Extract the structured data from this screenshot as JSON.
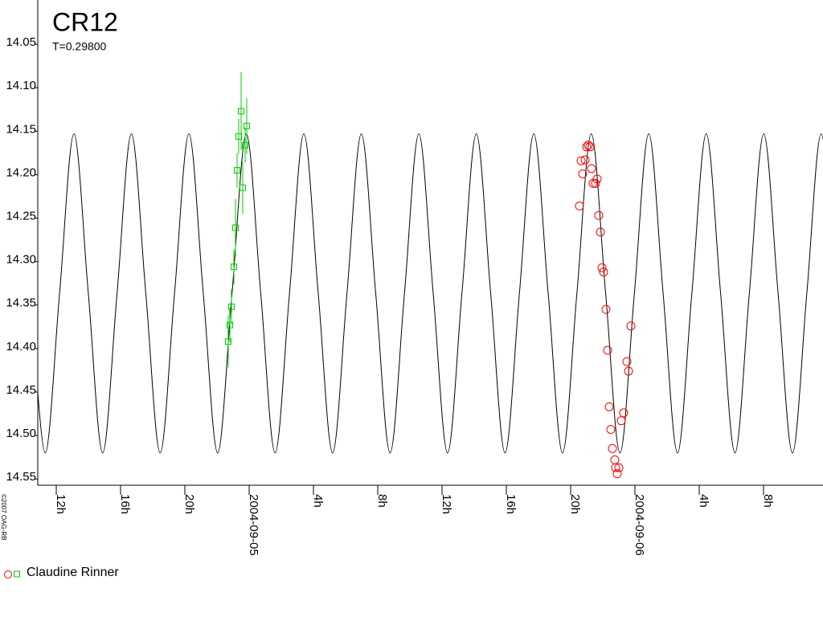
{
  "chart_data": {
    "type": "scatter",
    "title": "CR12",
    "subtitle": "T=0.29800",
    "copyright": "©2007 OAG-RB",
    "xlim": [
      -13.15,
      35.7
    ],
    "ylim": [
      14.0,
      14.56
    ],
    "inverted_y": true,
    "xticks": [
      {
        "value": -12,
        "label": "12h"
      },
      {
        "value": -8,
        "label": "16h"
      },
      {
        "value": -4,
        "label": "20h"
      },
      {
        "value": 0,
        "label": "2004-09-05"
      },
      {
        "value": 4,
        "label": "4h"
      },
      {
        "value": 8,
        "label": "8h"
      },
      {
        "value": 12,
        "label": "12h"
      },
      {
        "value": 16,
        "label": "16h"
      },
      {
        "value": 20,
        "label": "20h"
      },
      {
        "value": 24,
        "label": "2004-09-06"
      },
      {
        "value": 28,
        "label": "4h"
      },
      {
        "value": 32,
        "label": "8h"
      }
    ],
    "yticks": [
      14.05,
      {
        "value": 14.1,
        "label": "14.10"
      },
      14.15,
      {
        "value": 14.2,
        "label": "14.20"
      },
      14.25,
      {
        "value": 14.3,
        "label": "14.30"
      },
      14.35,
      {
        "value": 14.4,
        "label": "14.40"
      },
      14.45,
      {
        "value": 14.5,
        "label": "14.50"
      },
      14.55
    ],
    "curve": {
      "color": "#000000",
      "x": [
        -13.582,
        -12.688,
        -11.794,
        -10.9,
        -10.006,
        -9.112,
        -8.218,
        -7.324,
        -6.43,
        -5.536,
        -4.642,
        -3.748,
        -2.854,
        -1.96,
        -1.066,
        -0.172,
        0.722,
        1.616,
        2.51,
        3.404,
        4.298,
        5.192,
        6.086,
        6.98,
        7.874,
        8.768,
        9.662,
        10.556,
        11.45,
        12.344,
        13.238,
        14.132,
        15.026,
        15.92,
        16.814,
        17.708,
        18.602,
        19.496,
        20.39,
        21.284,
        22.178,
        23.072,
        23.966,
        24.86,
        25.754,
        26.648,
        27.542,
        28.436,
        29.33,
        30.224,
        31.118,
        32.012,
        32.906,
        33.8,
        34.694,
        35.588,
        36.482
      ],
      "values": [
        14.3365,
        14.52,
        14.3365,
        14.153,
        14.3365,
        14.52,
        14.3365,
        14.153,
        14.3365,
        14.52,
        14.3365,
        14.153,
        14.3365,
        14.52,
        14.3365,
        14.153,
        14.3365,
        14.52,
        14.3365,
        14.153,
        14.3365,
        14.52,
        14.3365,
        14.153,
        14.3365,
        14.52,
        14.3365,
        14.153,
        14.3365,
        14.52,
        14.3365,
        14.153,
        14.3365,
        14.52,
        14.3365,
        14.153,
        14.3365,
        14.52,
        14.3365,
        14.153,
        14.3365,
        14.52,
        14.3365,
        14.153,
        14.3365,
        14.52,
        14.3365,
        14.153,
        14.3365,
        14.52,
        14.3365,
        14.153,
        14.3365,
        14.52,
        14.3365,
        14.153,
        14.3365
      ]
    },
    "series": [
      {
        "name": "Claudine Rinner",
        "groups": [
          {
            "marker": "circle",
            "color": "#ff0000",
            "x": [
              20.55,
              20.65,
              20.75,
              20.9,
              21.0,
              21.1,
              21.2,
              21.3,
              21.4,
              21.55,
              21.65,
              21.75,
              21.85,
              21.95,
              22.05,
              22.2,
              22.3,
              22.4,
              22.5,
              22.6,
              22.75,
              22.8,
              22.9,
              23.0,
              23.15,
              23.3,
              23.5,
              23.6,
              23.75
            ],
            "values": [
              14.236,
              14.184,
              14.199,
              14.183,
              14.168,
              14.166,
              14.168,
              14.193,
              14.21,
              14.21,
              14.205,
              14.247,
              14.266,
              14.307,
              14.312,
              14.355,
              14.402,
              14.467,
              14.493,
              14.515,
              14.528,
              14.537,
              14.544,
              14.537,
              14.483,
              14.474,
              14.415,
              14.426,
              14.374
            ]
          },
          {
            "marker": "square",
            "color": "#00cc00",
            "x": [
              -1.3,
              -1.2,
              -1.1,
              -0.95,
              -0.85,
              -0.75,
              -0.65,
              -0.5,
              -0.4,
              -0.25,
              -0.15
            ],
            "values": [
              14.392,
              14.373,
              14.352,
              14.306,
              14.261,
              14.195,
              14.156,
              14.127,
              14.215,
              14.166,
              14.144
            ],
            "errors": [
              0.03,
              0.02,
              0.02,
              0.02,
              0.033,
              0.02,
              0.02,
              0.045,
              0.03,
              0.02,
              0.032
            ]
          }
        ]
      }
    ]
  }
}
